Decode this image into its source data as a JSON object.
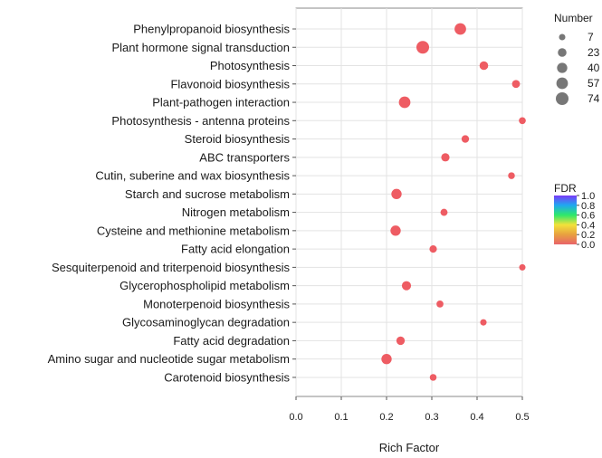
{
  "chart_data": {
    "type": "scatter",
    "xlabel": "Rich Factor",
    "xlim": [
      0,
      0.5
    ],
    "x_ticks": [
      0.0,
      0.1,
      0.2,
      0.3,
      0.4,
      0.5
    ],
    "x_tick_labels": [
      "0.0",
      "0.1",
      "0.2",
      "0.3",
      "0.4",
      "0.5"
    ],
    "grid": true,
    "points": [
      {
        "term": "Phenylpropanoid biosynthesis",
        "rich_factor": 0.363,
        "number": 57,
        "fdr": 0.0
      },
      {
        "term": "Plant hormone signal transduction",
        "rich_factor": 0.28,
        "number": 74,
        "fdr": 0.0
      },
      {
        "term": "Photosynthesis",
        "rich_factor": 0.415,
        "number": 23,
        "fdr": 0.0
      },
      {
        "term": "Flavonoid biosynthesis",
        "rich_factor": 0.486,
        "number": 17,
        "fdr": 0.0
      },
      {
        "term": "Plant-pathogen interaction",
        "rich_factor": 0.24,
        "number": 57,
        "fdr": 0.0
      },
      {
        "term": "Photosynthesis - antenna proteins",
        "rich_factor": 0.5,
        "number": 10,
        "fdr": 0.0
      },
      {
        "term": "Steroid biosynthesis",
        "rich_factor": 0.374,
        "number": 14,
        "fdr": 0.0
      },
      {
        "term": "ABC transporters",
        "rich_factor": 0.33,
        "number": 20,
        "fdr": 0.0
      },
      {
        "term": "Cutin, suberine and wax biosynthesis",
        "rich_factor": 0.476,
        "number": 9,
        "fdr": 0.0
      },
      {
        "term": "Starch and sucrose metabolism",
        "rich_factor": 0.222,
        "number": 40,
        "fdr": 0.0
      },
      {
        "term": "Nitrogen metabolism",
        "rich_factor": 0.327,
        "number": 11,
        "fdr": 0.0
      },
      {
        "term": "Cysteine and methionine metabolism",
        "rich_factor": 0.22,
        "number": 40,
        "fdr": 0.0
      },
      {
        "term": "Fatty acid elongation",
        "rich_factor": 0.303,
        "number": 13,
        "fdr": 0.0
      },
      {
        "term": "Sesquiterpenoid and triterpenoid biosynthesis",
        "rich_factor": 0.5,
        "number": 7,
        "fdr": 0.0
      },
      {
        "term": "Glycerophospholipid metabolism",
        "rich_factor": 0.244,
        "number": 28,
        "fdr": 0.0
      },
      {
        "term": "Monoterpenoid biosynthesis",
        "rich_factor": 0.318,
        "number": 10,
        "fdr": 0.0
      },
      {
        "term": "Glycosaminoglycan degradation",
        "rich_factor": 0.414,
        "number": 7,
        "fdr": 0.0
      },
      {
        "term": "Fatty acid degradation",
        "rich_factor": 0.231,
        "number": 21,
        "fdr": 0.0
      },
      {
        "term": "Amino sugar and nucleotide sugar metabolism",
        "rich_factor": 0.2,
        "number": 40,
        "fdr": 0.0
      },
      {
        "term": "Carotenoid biosynthesis",
        "rich_factor": 0.303,
        "number": 9,
        "fdr": 0.0
      }
    ],
    "size_legend": {
      "title": "Number",
      "values": [
        7,
        23,
        40,
        57,
        74
      ],
      "labels": [
        "7",
        "23",
        "40",
        "57",
        "74"
      ]
    },
    "color_legend": {
      "title": "FDR",
      "range": [
        0.0,
        1.0
      ],
      "tick_values": [
        1.0,
        0.8,
        0.6,
        0.4,
        0.2,
        0.0
      ],
      "tick_labels": [
        "1.0",
        "0.8",
        "0.6",
        "0.4",
        "0.2",
        "0.0"
      ],
      "colors_low_to_high": [
        "#e8636a",
        "#e8a040",
        "#f2e23a",
        "#2ee86a",
        "#1fa8f0",
        "#7a3af8"
      ]
    },
    "point_color": "#ee5c63"
  }
}
